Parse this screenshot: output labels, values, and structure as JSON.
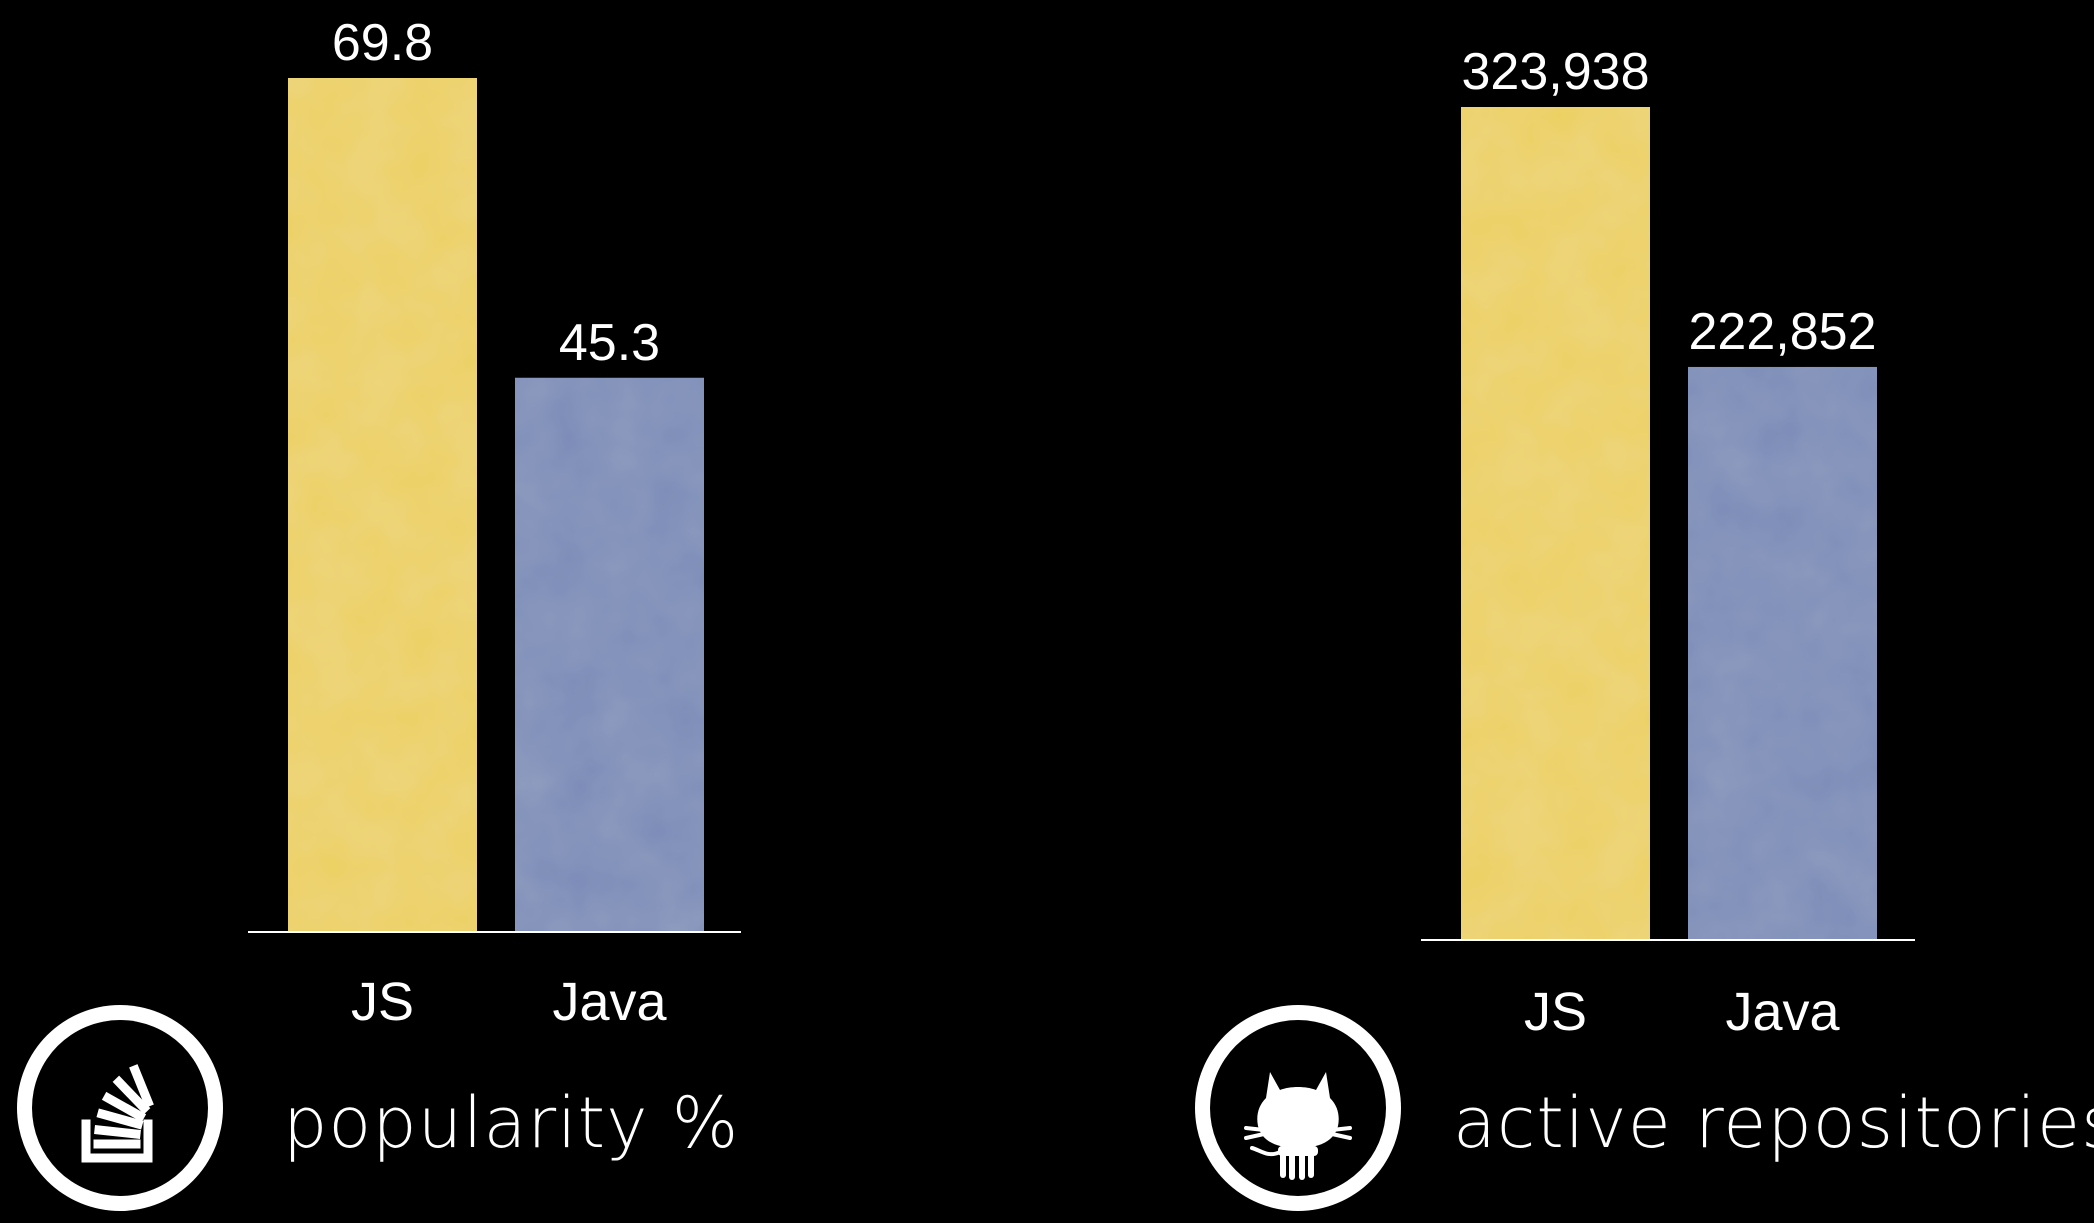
{
  "chart_data": [
    {
      "type": "bar",
      "categories": [
        "JS",
        "Java"
      ],
      "values": [
        69.8,
        45.3
      ],
      "value_labels": [
        "69.8",
        "45.3"
      ],
      "colors": [
        "#ecd062",
        "#7a8bb7"
      ],
      "caption": "popularity %",
      "icon": "stackoverflow-icon",
      "grid": false,
      "legend": "none"
    },
    {
      "type": "bar",
      "categories": [
        "JS",
        "Java"
      ],
      "values": [
        323938,
        222852
      ],
      "value_labels": [
        "323,938",
        "222,852"
      ],
      "colors": [
        "#ecd062",
        "#7a8bb7"
      ],
      "caption": "active repositories",
      "icon": "github-octocat-icon",
      "grid": false,
      "legend": "none"
    }
  ]
}
